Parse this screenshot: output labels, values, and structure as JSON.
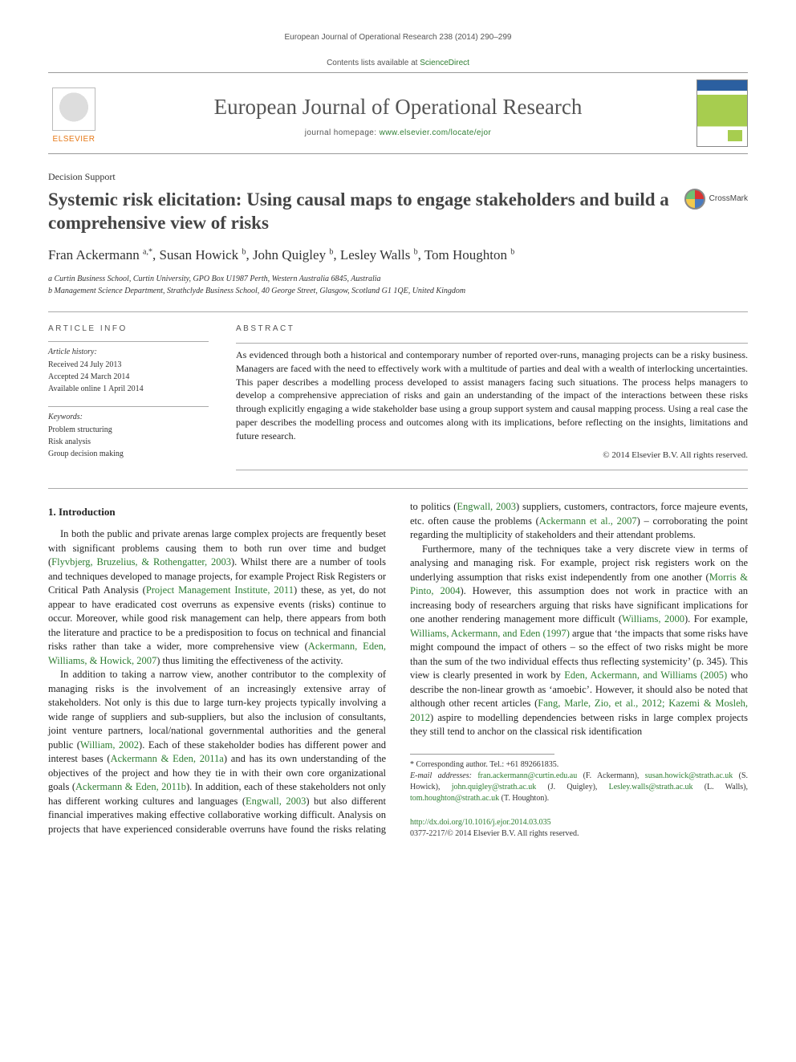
{
  "running_header": "European Journal of Operational Research 238 (2014) 290–299",
  "contents_line_prefix": "Contents lists available at ",
  "contents_line_link": "ScienceDirect",
  "journal_title": "European Journal of Operational Research",
  "journal_homepage_label": "journal homepage: ",
  "journal_homepage_url": "www.elsevier.com/locate/ejor",
  "elsevier_label": "ELSEVIER",
  "crossmark_label": "CrossMark",
  "section_label": "Decision Support",
  "article_title": "Systemic risk elicitation: Using causal maps to engage stakeholders and build a comprehensive view of risks",
  "authors_html": "Fran Ackermann <sup>a,*</sup>, Susan Howick <sup>b</sup>, John Quigley <sup>b</sup>, Lesley Walls <sup>b</sup>, Tom Houghton <sup>b</sup>",
  "affiliations": [
    "a Curtin Business School, Curtin University, GPO Box U1987 Perth, Western Australia 6845, Australia",
    "b Management Science Department, Strathclyde Business School, 40 George Street, Glasgow, Scotland G1 1QE, United Kingdom"
  ],
  "article_info": {
    "heading": "ARTICLE INFO",
    "history_label": "Article history:",
    "received": "Received 24 July 2013",
    "accepted": "Accepted 24 March 2014",
    "online": "Available online 1 April 2014",
    "keywords_label": "Keywords:",
    "keywords": [
      "Problem structuring",
      "Risk analysis",
      "Group decision making"
    ]
  },
  "abstract": {
    "heading": "ABSTRACT",
    "text": "As evidenced through both a historical and contemporary number of reported over-runs, managing projects can be a risky business. Managers are faced with the need to effectively work with a multitude of parties and deal with a wealth of interlocking uncertainties. This paper describes a modelling process developed to assist managers facing such situations. The process helps managers to develop a comprehensive appreciation of risks and gain an understanding of the impact of the interactions between these risks through explicitly engaging a wide stakeholder base using a group support system and causal mapping process. Using a real case the paper describes the modelling process and outcomes along with its implications, before reflecting on the insights, limitations and future research.",
    "copyright": "© 2014 Elsevier B.V. All rights reserved."
  },
  "body": {
    "heading1": "1. Introduction",
    "p1a": "In both the public and private arenas large complex projects are frequently beset with significant problems causing them to both run over time and budget (",
    "p1_ref1": "Flyvbjerg, Bruzelius, & Rothengatter, 2003",
    "p1b": "). Whilst there are a number of tools and techniques developed to manage projects, for example Project Risk Registers or Critical Path Analysis (",
    "p1_ref2": "Project Management Institute, 2011",
    "p1c": ") these, as yet, do not appear to have eradicated cost overruns as expensive events (risks) continue to occur. Moreover, while good risk management can help, there appears from both the literature and practice to be a predisposition to focus on technical and financial risks rather than take a wider, more comprehensive view (",
    "p1_ref3": "Ackermann, Eden, Williams, & Howick, 2007",
    "p1d": ") thus limiting the effectiveness of the activity.",
    "p2a": "In addition to taking a narrow view, another contributor to the complexity of managing risks is the involvement of an increasingly extensive array of stakeholders. Not only is this due to large turn-key projects typically involving a wide range of suppliers and sub-suppliers, but also the inclusion of consultants, joint venture partners, local/national governmental authorities and the general public (",
    "p2_ref1": "William, 2002",
    "p2b": "). Each of these stakeholder bodies has different power and interest bases (",
    "p2_ref2": "Ackermann & Eden, 2011a",
    "p2c": ") and has its own understanding of the objectives of the project and how they tie in with their own core organizational goals (",
    "p2_ref3": "Ackermann & Eden, 2011b",
    "p2d": "). In addition, each of these stakeholders not only has different working cultures and languages (",
    "p2_ref4": "Engwall, 2003",
    "p2e": ") but also different financial imperatives making effective collaborative working difficult. Analysis on projects that have experienced considerable overruns have found the risks relating to politics (",
    "p2_ref5": "Engwall, 2003",
    "p2f": ") suppliers, customers, contractors, force majeure events, etc. often cause the problems (",
    "p2_ref6": "Ackermann et al., 2007",
    "p2g": ") – corroborating the point regarding the multiplicity of stakeholders and their attendant problems.",
    "p3a": "Furthermore, many of the techniques take a very discrete view in terms of analysing and managing risk. For example, project risk registers work on the underlying assumption that risks exist independently from one another (",
    "p3_ref1": "Morris & Pinto, 2004",
    "p3b": "). However, this assumption does not work in practice with an increasing body of researchers arguing that risks have significant implications for one another rendering management more difficult (",
    "p3_ref2": "Williams, 2000",
    "p3c": "). For example, ",
    "p3_ref3": "Williams, Ackermann, and Eden (1997)",
    "p3d": " argue that ‘the impacts that some risks have might compound the impact of others – so the effect of two risks might be more than the sum of the two individual effects thus reflecting systemicity’ (p. 345). This view is clearly presented in work by ",
    "p3_ref4": "Eden, Ackermann, and Williams (2005)",
    "p3e": " who describe the non-linear growth as ‘amoebic’. However, it should also be noted that although other recent articles (",
    "p3_ref5": "Fang, Marle, Zio, et al., 2012; Kazemi & Mosleh, 2012",
    "p3f": ") aspire to modelling dependencies between risks in large complex projects they still tend to anchor on the classical risk identification"
  },
  "footnotes": {
    "corresponding": "* Corresponding author. Tel.: +61 892661835.",
    "emails_label": "E-mail addresses:",
    "emails": [
      {
        "addr": "fran.ackermann@curtin.edu.au",
        "who": "(F. Ackermann)"
      },
      {
        "addr": "susan.howick@strath.ac.uk",
        "who": "(S. Howick)"
      },
      {
        "addr": "john.quigley@strath.ac.uk",
        "who": "(J. Quigley)"
      },
      {
        "addr": "Lesley.walls@strath.ac.uk",
        "who": "(L. Walls)"
      },
      {
        "addr": "tom.houghton@strath.ac.uk",
        "who": "(T. Houghton)"
      }
    ]
  },
  "doi": {
    "url": "http://dx.doi.org/10.1016/j.ejor.2014.03.035",
    "issn_line": "0377-2217/© 2014 Elsevier B.V. All rights reserved."
  },
  "colors": {
    "link": "#2e7d32",
    "elsevier_orange": "#e67817",
    "rule": "#aaaaaa"
  }
}
